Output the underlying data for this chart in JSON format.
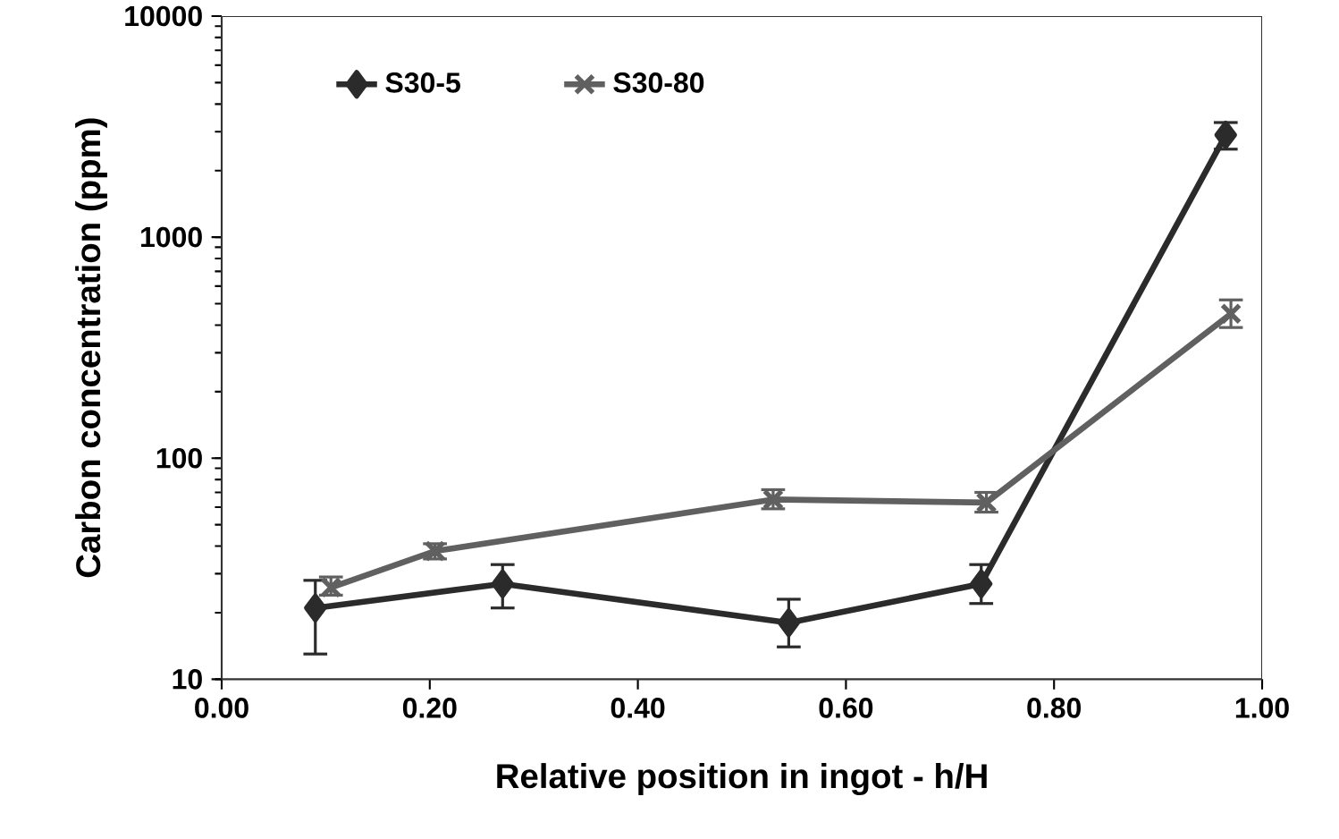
{
  "chart_data": {
    "type": "line",
    "xlabel": "Relative position in ingot - h/H",
    "ylabel": "Carbon concentration (ppm)",
    "log": "y",
    "xlim": [
      0,
      1
    ],
    "ylim": [
      10,
      10000
    ],
    "xticks": [
      {
        "value": 0,
        "label": "0.00"
      },
      {
        "value": 0.2,
        "label": "0.20"
      },
      {
        "value": 0.4,
        "label": "0.40"
      },
      {
        "value": 0.6,
        "label": "0.60"
      },
      {
        "value": 0.8,
        "label": "0.80"
      },
      {
        "value": 1,
        "label": "1.00"
      }
    ],
    "yticks": [
      10,
      100,
      1000,
      10000
    ],
    "legend": "top left",
    "grid": false,
    "line_style": "solid",
    "series": [
      {
        "name": "S30-5",
        "color": "#2b2b2b",
        "marker": "diamond",
        "x": [
          0.09,
          0.27,
          0.545,
          0.73,
          0.965
        ],
        "values": [
          21,
          27,
          18,
          27,
          2900
        ],
        "errors": [
          [
            13,
            28
          ],
          [
            21,
            33
          ],
          [
            14,
            23
          ],
          [
            22,
            33
          ],
          [
            2500,
            3300
          ]
        ]
      },
      {
        "name": "S30-80",
        "color": "#606060",
        "marker": "cross",
        "x": [
          0.105,
          0.205,
          0.53,
          0.735,
          0.97
        ],
        "values": [
          26,
          38,
          65,
          63,
          450
        ],
        "errors": [
          [
            24,
            29
          ],
          [
            35,
            41
          ],
          [
            59,
            72
          ],
          [
            57,
            70
          ],
          [
            390,
            520
          ]
        ]
      }
    ]
  }
}
